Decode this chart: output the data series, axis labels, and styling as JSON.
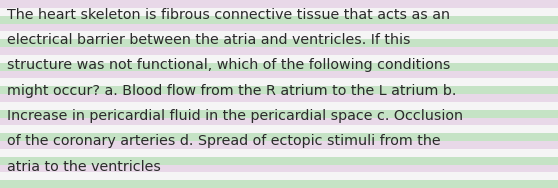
{
  "lines": [
    "The heart skeleton is fibrous connective tissue that acts as an",
    "electrical barrier between the atria and ventricles. If this",
    "structure was not functional, which of the following conditions",
    "might occur? a. Blood flow from the R atrium to the L atrium b.",
    "Increase in pericardial fluid in the pericardial space c. Occlusion",
    "of the coronary arteries d. Spread of ectopic stimuli from the",
    "atria to the ventricles"
  ],
  "stripe_colors": [
    "#c8e6c8",
    "#ffffff",
    "#e8d8e8"
  ],
  "text_color": "#2a2a2a",
  "font_size": 10.3,
  "fig_width": 5.58,
  "fig_height": 1.88,
  "dpi": 100,
  "num_stripes": 24
}
